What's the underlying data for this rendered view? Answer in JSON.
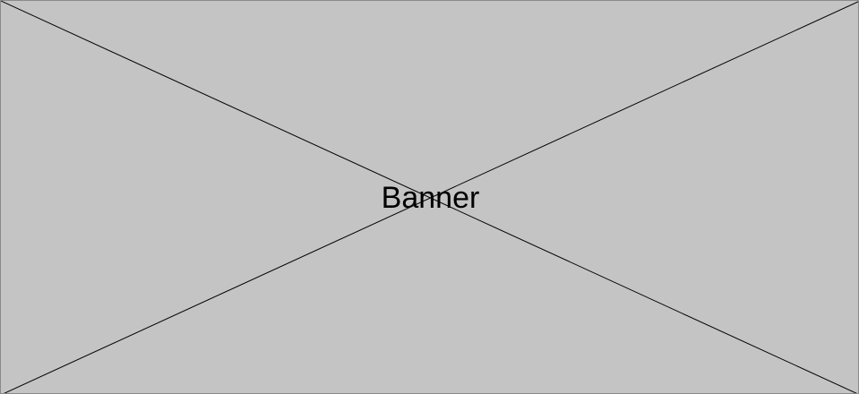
{
  "banner": {
    "label": "Banner",
    "fill_color": "#c4c4c4",
    "line_color": "#000000"
  }
}
